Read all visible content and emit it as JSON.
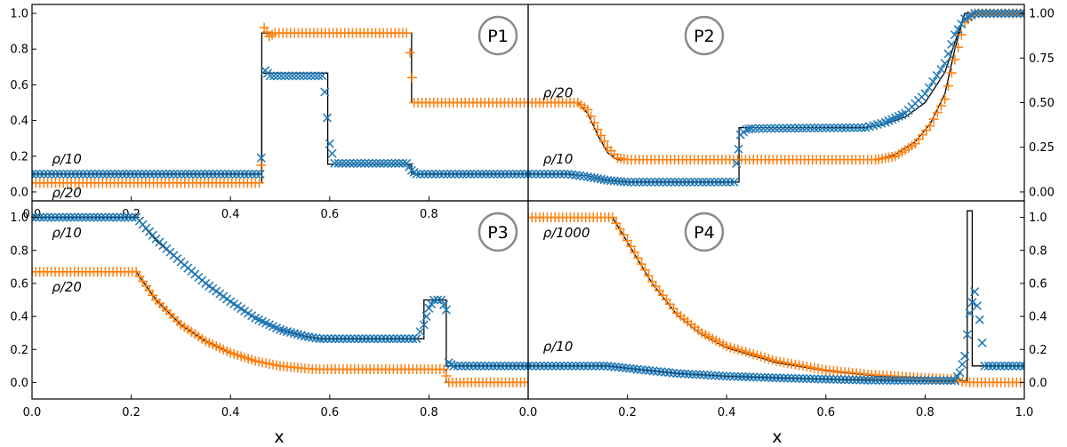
{
  "figure": {
    "xlabel_left": "x",
    "xlabel_right": "x"
  },
  "colors": {
    "cross_x": "#1f77b4",
    "cross_plus": "#ff7f0e",
    "exact": "#000000"
  },
  "chart_data": [
    {
      "type": "line",
      "id": "P1",
      "label": "P1",
      "xlim": [
        0,
        1
      ],
      "ylim": [
        -0.05,
        1.05
      ],
      "x_ticks": [
        "0.0",
        "0.2",
        "0.4",
        "0.6",
        "0.8"
      ],
      "y_ticks": [
        "0.0",
        "0.2",
        "0.4",
        "0.6",
        "0.8",
        "1.0"
      ],
      "tick_side": "left",
      "annotations": [
        {
          "text": "ρ/10",
          "x": 0.04,
          "y": 0.16
        },
        {
          "text": "ρ/20",
          "x": 0.04,
          "y": -0.03
        }
      ],
      "series": [
        {
          "name": "ρ/10 exact",
          "style": "line",
          "color": "#000000",
          "points": [
            [
              0,
              0.1
            ],
            [
              0.463,
              0.1
            ],
            [
              0.463,
              0.665
            ],
            [
              0.596,
              0.665
            ],
            [
              0.596,
              0.155
            ],
            [
              0.765,
              0.155
            ],
            [
              0.765,
              0.1
            ],
            [
              1,
              0.1
            ]
          ]
        },
        {
          "name": "ρ/20 exact",
          "style": "line",
          "color": "#000000",
          "points": [
            [
              0,
              0.05
            ],
            [
              0.463,
              0.05
            ],
            [
              0.463,
              0.89
            ],
            [
              0.765,
              0.89
            ],
            [
              0.765,
              0.5
            ],
            [
              1,
              0.5
            ]
          ]
        },
        {
          "name": "ρ/10",
          "style": "x-marker",
          "color": "#1f77b4",
          "points": [
            [
              0,
              0.1
            ],
            [
              0.46,
              0.1
            ],
            [
              0.462,
              0.19
            ],
            [
              0.47,
              0.68
            ],
            [
              0.48,
              0.65
            ],
            [
              0.585,
              0.65
            ],
            [
              0.59,
              0.56
            ],
            [
              0.6,
              0.27
            ],
            [
              0.61,
              0.16
            ],
            [
              0.755,
              0.16
            ],
            [
              0.765,
              0.12
            ],
            [
              0.775,
              0.1
            ],
            [
              1,
              0.1
            ]
          ]
        },
        {
          "name": "ρ/20",
          "style": "plus-marker",
          "color": "#ff7f0e",
          "points": [
            [
              0,
              0.05
            ],
            [
              0.458,
              0.05
            ],
            [
              0.462,
              0.15
            ],
            [
              0.468,
              0.92
            ],
            [
              0.478,
              0.87
            ],
            [
              0.49,
              0.89
            ],
            [
              0.755,
              0.89
            ],
            [
              0.762,
              0.78
            ],
            [
              0.77,
              0.5
            ],
            [
              1,
              0.5
            ]
          ]
        }
      ]
    },
    {
      "type": "line",
      "id": "P2",
      "label": "P2",
      "xlim": [
        0,
        1
      ],
      "ylim": [
        -0.05,
        1.05
      ],
      "x_ticks": [],
      "y_ticks": [
        "0.00",
        "0.25",
        "0.50",
        "0.75",
        "1.00"
      ],
      "tick_side": "right",
      "annotations": [
        {
          "text": "ρ/20",
          "x": 0.03,
          "y": 0.53
        },
        {
          "text": "ρ/10",
          "x": 0.03,
          "y": 0.16
        }
      ],
      "series": [
        {
          "name": "ρ/20 exact",
          "style": "line",
          "color": "#000000",
          "points": [
            [
              0,
              0.5
            ],
            [
              0.1,
              0.5
            ],
            [
              0.12,
              0.44
            ],
            [
              0.14,
              0.32
            ],
            [
              0.16,
              0.22
            ],
            [
              0.18,
              0.18
            ],
            [
              0.7,
              0.18
            ],
            [
              0.74,
              0.21
            ],
            [
              0.78,
              0.28
            ],
            [
              0.81,
              0.38
            ],
            [
              0.84,
              0.55
            ],
            [
              0.86,
              0.8
            ],
            [
              0.88,
              1
            ],
            [
              1,
              1
            ]
          ]
        },
        {
          "name": "ρ/10 exact",
          "style": "line",
          "color": "#000000",
          "points": [
            [
              0,
              0.1
            ],
            [
              0.08,
              0.1
            ],
            [
              0.12,
              0.09
            ],
            [
              0.16,
              0.065
            ],
            [
              0.2,
              0.055
            ],
            [
              0.425,
              0.055
            ],
            [
              0.425,
              0.36
            ],
            [
              0.68,
              0.36
            ],
            [
              0.72,
              0.38
            ],
            [
              0.76,
              0.42
            ],
            [
              0.8,
              0.5
            ],
            [
              0.84,
              0.67
            ],
            [
              0.88,
              1
            ],
            [
              1,
              1
            ]
          ]
        },
        {
          "name": "ρ/20",
          "style": "plus-marker",
          "color": "#ff7f0e",
          "points": [
            [
              0,
              0.5
            ],
            [
              0.1,
              0.5
            ],
            [
              0.12,
              0.46
            ],
            [
              0.14,
              0.35
            ],
            [
              0.16,
              0.25
            ],
            [
              0.18,
              0.19
            ],
            [
              0.2,
              0.18
            ],
            [
              0.7,
              0.18
            ],
            [
              0.74,
              0.2
            ],
            [
              0.78,
              0.27
            ],
            [
              0.81,
              0.37
            ],
            [
              0.84,
              0.52
            ],
            [
              0.86,
              0.74
            ],
            [
              0.88,
              0.95
            ],
            [
              0.9,
              1
            ],
            [
              1,
              1
            ]
          ]
        },
        {
          "name": "ρ/10",
          "style": "x-marker",
          "color": "#1f77b4",
          "points": [
            [
              0,
              0.1
            ],
            [
              0.08,
              0.1
            ],
            [
              0.12,
              0.085
            ],
            [
              0.16,
              0.065
            ],
            [
              0.2,
              0.055
            ],
            [
              0.415,
              0.055
            ],
            [
              0.42,
              0.16
            ],
            [
              0.428,
              0.32
            ],
            [
              0.44,
              0.35
            ],
            [
              0.45,
              0.355
            ],
            [
              0.68,
              0.36
            ],
            [
              0.72,
              0.39
            ],
            [
              0.76,
              0.44
            ],
            [
              0.8,
              0.55
            ],
            [
              0.84,
              0.72
            ],
            [
              0.86,
              0.88
            ],
            [
              0.88,
              0.97
            ],
            [
              0.9,
              1
            ],
            [
              1,
              1
            ]
          ]
        }
      ]
    },
    {
      "type": "line",
      "id": "P3",
      "label": "P3",
      "xlim": [
        0,
        1
      ],
      "ylim": [
        -0.1,
        1.1
      ],
      "x_ticks": [
        "0.0",
        "0.2",
        "0.4",
        "0.6",
        "0.8"
      ],
      "y_ticks": [
        "0.0",
        "0.2",
        "0.4",
        "0.6",
        "0.8",
        "1.0"
      ],
      "tick_side": "left",
      "annotations": [
        {
          "text": "ρ/10",
          "x": 0.04,
          "y": 0.88
        },
        {
          "text": "ρ/20",
          "x": 0.04,
          "y": 0.55
        }
      ],
      "series": [
        {
          "name": "ρ/10 exact",
          "style": "line",
          "color": "#000000",
          "points": [
            [
              0,
              1
            ],
            [
              0.21,
              1
            ],
            [
              0.25,
              0.86
            ],
            [
              0.3,
              0.73
            ],
            [
              0.35,
              0.6
            ],
            [
              0.4,
              0.49
            ],
            [
              0.45,
              0.39
            ],
            [
              0.5,
              0.32
            ],
            [
              0.55,
              0.28
            ],
            [
              0.58,
              0.265
            ],
            [
              0.79,
              0.265
            ],
            [
              0.79,
              0.5
            ],
            [
              0.835,
              0.5
            ],
            [
              0.835,
              0.1
            ],
            [
              1,
              0.1
            ]
          ]
        },
        {
          "name": "ρ/20 exact",
          "style": "line",
          "color": "#000000",
          "points": [
            [
              0,
              0.67
            ],
            [
              0.21,
              0.67
            ],
            [
              0.25,
              0.5
            ],
            [
              0.3,
              0.35
            ],
            [
              0.35,
              0.25
            ],
            [
              0.4,
              0.18
            ],
            [
              0.45,
              0.13
            ],
            [
              0.5,
              0.1
            ],
            [
              0.55,
              0.085
            ],
            [
              0.58,
              0.08
            ],
            [
              0.835,
              0.08
            ],
            [
              0.835,
              0.0
            ],
            [
              1,
              0.0
            ]
          ]
        },
        {
          "name": "ρ/10",
          "style": "x-marker",
          "color": "#1f77b4",
          "points": [
            [
              0,
              1
            ],
            [
              0.21,
              1
            ],
            [
              0.25,
              0.87
            ],
            [
              0.3,
              0.73
            ],
            [
              0.35,
              0.6
            ],
            [
              0.4,
              0.49
            ],
            [
              0.45,
              0.39
            ],
            [
              0.5,
              0.32
            ],
            [
              0.55,
              0.28
            ],
            [
              0.58,
              0.265
            ],
            [
              0.775,
              0.265
            ],
            [
              0.79,
              0.35
            ],
            [
              0.8,
              0.45
            ],
            [
              0.81,
              0.5
            ],
            [
              0.825,
              0.5
            ],
            [
              0.835,
              0.44
            ],
            [
              0.84,
              0.12
            ],
            [
              0.85,
              0.1
            ],
            [
              1,
              0.1
            ]
          ]
        },
        {
          "name": "ρ/20",
          "style": "plus-marker",
          "color": "#ff7f0e",
          "points": [
            [
              0,
              0.67
            ],
            [
              0.21,
              0.67
            ],
            [
              0.25,
              0.5
            ],
            [
              0.3,
              0.35
            ],
            [
              0.35,
              0.25
            ],
            [
              0.4,
              0.18
            ],
            [
              0.45,
              0.13
            ],
            [
              0.5,
              0.1
            ],
            [
              0.55,
              0.085
            ],
            [
              0.58,
              0.08
            ],
            [
              0.83,
              0.08
            ],
            [
              0.84,
              0.0
            ],
            [
              1,
              0.0
            ]
          ]
        }
      ]
    },
    {
      "type": "line",
      "id": "P4",
      "label": "P4",
      "xlim": [
        0,
        1
      ],
      "ylim": [
        -0.1,
        1.1
      ],
      "x_ticks": [
        "0.0",
        "0.2",
        "0.4",
        "0.6",
        "0.8",
        "1.0"
      ],
      "y_ticks": [
        "0.0",
        "0.2",
        "0.4",
        "0.6",
        "0.8",
        "1.0"
      ],
      "tick_side": "right",
      "annotations": [
        {
          "text": "ρ/1000",
          "x": 0.03,
          "y": 0.88
        },
        {
          "text": "ρ/10",
          "x": 0.03,
          "y": 0.19
        }
      ],
      "series": [
        {
          "name": "ρ/1000 exact",
          "style": "line",
          "color": "#000000",
          "points": [
            [
              0,
              1
            ],
            [
              0.17,
              1
            ],
            [
              0.2,
              0.85
            ],
            [
              0.25,
              0.6
            ],
            [
              0.3,
              0.41
            ],
            [
              0.35,
              0.29
            ],
            [
              0.4,
              0.21
            ],
            [
              0.5,
              0.12
            ],
            [
              0.6,
              0.07
            ],
            [
              0.7,
              0.04
            ],
            [
              0.8,
              0.025
            ],
            [
              0.87,
              0.02
            ],
            [
              0.88,
              0.0
            ],
            [
              1,
              0.0
            ]
          ]
        },
        {
          "name": "ρ/10 exact",
          "style": "line",
          "color": "#000000",
          "points": [
            [
              0,
              0.1
            ],
            [
              0.16,
              0.1
            ],
            [
              0.22,
              0.08
            ],
            [
              0.3,
              0.055
            ],
            [
              0.4,
              0.038
            ],
            [
              0.5,
              0.028
            ],
            [
              0.6,
              0.02
            ],
            [
              0.7,
              0.013
            ],
            [
              0.8,
              0.01
            ],
            [
              0.885,
              0.01
            ],
            [
              0.885,
              1.04
            ],
            [
              0.895,
              1.04
            ],
            [
              0.895,
              0.1
            ],
            [
              1,
              0.1
            ]
          ]
        },
        {
          "name": "ρ/1000",
          "style": "plus-marker",
          "color": "#ff7f0e",
          "points": [
            [
              0,
              1
            ],
            [
              0.17,
              1
            ],
            [
              0.2,
              0.86
            ],
            [
              0.25,
              0.61
            ],
            [
              0.3,
              0.42
            ],
            [
              0.35,
              0.3
            ],
            [
              0.4,
              0.22
            ],
            [
              0.5,
              0.13
            ],
            [
              0.6,
              0.075
            ],
            [
              0.7,
              0.045
            ],
            [
              0.8,
              0.028
            ],
            [
              0.86,
              0.02
            ],
            [
              0.875,
              0.005
            ],
            [
              0.89,
              0.0
            ],
            [
              1,
              0.0
            ]
          ]
        },
        {
          "name": "ρ/10",
          "style": "x-marker",
          "color": "#1f77b4",
          "points": [
            [
              0,
              0.1
            ],
            [
              0.16,
              0.1
            ],
            [
              0.22,
              0.08
            ],
            [
              0.3,
              0.055
            ],
            [
              0.4,
              0.038
            ],
            [
              0.5,
              0.028
            ],
            [
              0.6,
              0.02
            ],
            [
              0.7,
              0.013
            ],
            [
              0.86,
              0.012
            ],
            [
              0.87,
              0.06
            ],
            [
              0.88,
              0.16
            ],
            [
              0.89,
              0.42
            ],
            [
              0.9,
              0.55
            ],
            [
              0.91,
              0.38
            ],
            [
              0.92,
              0.1
            ],
            [
              1,
              0.1
            ]
          ]
        }
      ]
    }
  ]
}
